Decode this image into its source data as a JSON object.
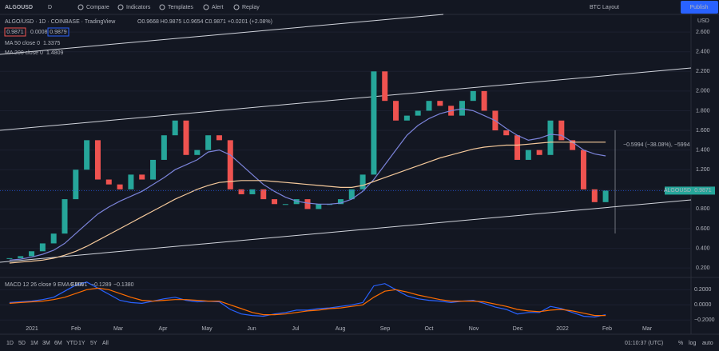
{
  "toolbar": {
    "symbol": "ALGOUSD",
    "interval": "D",
    "buttons": [
      "Compare",
      "Indicators",
      "Templates",
      "Alert",
      "Replay"
    ],
    "layout": "BTC Layout",
    "publish": "Publish"
  },
  "legend": {
    "title": "ALGO/USD · 1D · COINBASE · TradingView",
    "ohlc": "O0.9668 H0.9875 L0.9654 C0.9871 +0.0201 (+2.08%)",
    "bid": "0.9871",
    "spread": "0.0008",
    "ask": "0.9879",
    "ma50_label": "MA 50 close 0",
    "ma50_value": "1.3375",
    "ma200_label": "MA 200 close 0",
    "ma200_value": "1.4809"
  },
  "price_chart": {
    "type": "candlestick",
    "currency": "USD",
    "close": [
      0.3,
      0.32,
      0.37,
      0.45,
      0.55,
      0.9,
      1.2,
      1.5,
      1.1,
      1.05,
      1.0,
      1.15,
      1.1,
      1.3,
      1.55,
      1.7,
      1.35,
      1.4,
      1.55,
      1.5,
      1.0,
      0.95,
      1.0,
      0.9,
      0.85,
      0.85,
      0.9,
      0.8,
      0.85,
      0.85,
      0.9,
      1.0,
      1.15,
      2.2,
      1.9,
      1.7,
      1.75,
      1.8,
      1.9,
      1.85,
      1.75,
      1.9,
      2.0,
      1.8,
      1.6,
      1.55,
      1.3,
      1.4,
      1.35,
      1.7,
      1.5,
      1.4,
      1.0,
      0.87,
      0.9871
    ],
    "ma50": [
      0.28,
      0.29,
      0.31,
      0.34,
      0.38,
      0.45,
      0.55,
      0.65,
      0.75,
      0.82,
      0.88,
      0.93,
      0.98,
      1.05,
      1.12,
      1.2,
      1.25,
      1.3,
      1.38,
      1.4,
      1.35,
      1.25,
      1.15,
      1.05,
      0.98,
      0.92,
      0.88,
      0.86,
      0.85,
      0.85,
      0.86,
      0.9,
      0.98,
      1.1,
      1.25,
      1.4,
      1.55,
      1.65,
      1.72,
      1.77,
      1.8,
      1.82,
      1.8,
      1.75,
      1.7,
      1.62,
      1.55,
      1.5,
      1.52,
      1.56,
      1.55,
      1.48,
      1.4,
      1.36,
      1.34
    ],
    "ma200": [
      0.25,
      0.26,
      0.27,
      0.28,
      0.3,
      0.33,
      0.37,
      0.42,
      0.48,
      0.54,
      0.6,
      0.66,
      0.72,
      0.78,
      0.84,
      0.9,
      0.95,
      1.0,
      1.04,
      1.07,
      1.08,
      1.09,
      1.09,
      1.09,
      1.08,
      1.07,
      1.06,
      1.05,
      1.04,
      1.03,
      1.02,
      1.02,
      1.04,
      1.08,
      1.12,
      1.16,
      1.2,
      1.24,
      1.28,
      1.32,
      1.35,
      1.38,
      1.41,
      1.43,
      1.44,
      1.45,
      1.45,
      1.46,
      1.47,
      1.48,
      1.48,
      1.48,
      1.48,
      1.48,
      1.48
    ],
    "ylim": [
      0.12,
      2.78
    ],
    "yticks": [
      {
        "value": 0.2,
        "label": "0.200"
      },
      {
        "value": 0.4,
        "label": "0.400"
      },
      {
        "value": 0.6,
        "label": "0.600"
      },
      {
        "value": 0.8,
        "label": "0.800"
      },
      {
        "value": 1.0,
        "label": "1.000"
      },
      {
        "value": 1.2,
        "label": "1.200"
      },
      {
        "value": 1.4,
        "label": "1.400"
      },
      {
        "value": 1.6,
        "label": "1.600"
      },
      {
        "value": 1.8,
        "label": "1.800"
      },
      {
        "value": 2.0,
        "label": "2.000"
      },
      {
        "value": 2.2,
        "label": "2.200"
      },
      {
        "value": 2.4,
        "label": "2.400"
      },
      {
        "value": 2.6,
        "label": "2.600"
      }
    ],
    "up_color": "#26a69a",
    "down_color": "#ef5350",
    "ma50_color": "#7b83d9",
    "ma200_color": "#f5c99b",
    "last_symbol": "ALGOUSD",
    "last_price": 0.9871,
    "last_price_label": "0.9871",
    "measure": "−0.5994 (−38.08%), −5994"
  },
  "macd": {
    "label": "MACD 12 26 close 9 EMA EMA",
    "printed": [
      "0.0091",
      "−0.1289",
      "−0.1380"
    ],
    "macd": [
      0.03,
      0.04,
      0.05,
      0.07,
      0.1,
      0.18,
      0.26,
      0.3,
      0.22,
      0.14,
      0.06,
      0.03,
      0.02,
      0.05,
      0.08,
      0.1,
      0.06,
      0.04,
      0.05,
      0.04,
      -0.06,
      -0.12,
      -0.14,
      -0.15,
      -0.12,
      -0.1,
      -0.07,
      -0.07,
      -0.05,
      -0.04,
      -0.02,
      0.0,
      0.03,
      0.25,
      0.28,
      0.2,
      0.12,
      0.08,
      0.06,
      0.05,
      0.03,
      0.05,
      0.06,
      0.02,
      -0.03,
      -0.06,
      -0.12,
      -0.1,
      -0.1,
      -0.02,
      -0.05,
      -0.1,
      -0.15,
      -0.16,
      -0.13
    ],
    "signal": [
      0.02,
      0.03,
      0.04,
      0.05,
      0.07,
      0.1,
      0.15,
      0.2,
      0.22,
      0.2,
      0.15,
      0.1,
      0.06,
      0.05,
      0.06,
      0.07,
      0.07,
      0.06,
      0.05,
      0.05,
      0.0,
      -0.05,
      -0.1,
      -0.13,
      -0.13,
      -0.12,
      -0.1,
      -0.08,
      -0.07,
      -0.05,
      -0.04,
      -0.02,
      0.0,
      0.1,
      0.18,
      0.2,
      0.17,
      0.13,
      0.1,
      0.07,
      0.05,
      0.05,
      0.05,
      0.04,
      0.01,
      -0.02,
      -0.06,
      -0.08,
      -0.09,
      -0.07,
      -0.06,
      -0.08,
      -0.11,
      -0.14,
      -0.14
    ],
    "macd_color": "#2962ff",
    "signal_color": "#ff6d00",
    "ylim": [
      -0.25,
      0.33
    ],
    "yticks": [
      {
        "value": -0.2,
        "label": "−0.2000"
      },
      {
        "value": 0,
        "label": "0.0000"
      },
      {
        "value": 0.2,
        "label": "0.2000"
      }
    ]
  },
  "time_axis": [
    "2021",
    "Feb",
    "Mar",
    "Apr",
    "May",
    "Jun",
    "Jul",
    "Aug",
    "Sep",
    "Oct",
    "Nov",
    "Dec",
    "2022",
    "Feb",
    "Mar"
  ],
  "bottom_bar": {
    "ranges": [
      "1D",
      "5D",
      "1M",
      "3M",
      "6M",
      "YTD",
      "1Y",
      "5Y",
      "All"
    ],
    "clock": "01:10:37 (UTC)",
    "percent": "%",
    "log": "log",
    "auto": "auto"
  }
}
